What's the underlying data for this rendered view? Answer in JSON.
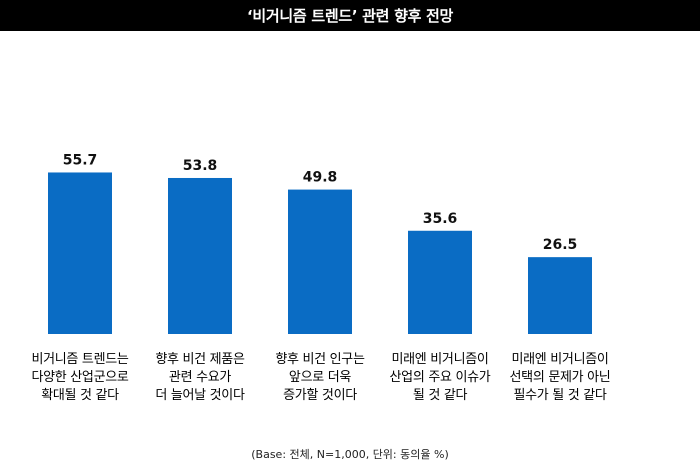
{
  "title": "‘비거니즘 트렌드’ 관련 향후 전망",
  "footnote": "(Base: 전체, N=1,000, 단위: 동의율 %)",
  "colors": {
    "bar": "#0a6cc4",
    "title_bg": "#000000",
    "title_text": "#ffffff"
  },
  "chart_data": {
    "type": "bar",
    "title": "‘비거니즘 트렌드’ 관련 향후 전망",
    "categories": [
      "비거니즘 트렌드는\n다양한 산업군으로\n확대될 것 같다",
      "향후 비건 제품은\n관련 수요가\n더 늘어날 것이다",
      "향후 비건 인구는\n앞으로 더욱\n증가할 것이다",
      "미래엔 비거니즘이\n산업의 주요 이슈가\n될 것 같다",
      "미래엔 비거니즘이\n선택의 문제가 아닌\n필수가 될 것 같다"
    ],
    "values": [
      55.7,
      53.8,
      49.8,
      35.6,
      26.5
    ],
    "value_labels": [
      "55.7",
      "53.8",
      "49.8",
      "35.6",
      "26.5"
    ],
    "xlabel": "",
    "ylabel": "",
    "ylim": [
      0,
      100
    ],
    "grid": false,
    "legend": "none"
  }
}
